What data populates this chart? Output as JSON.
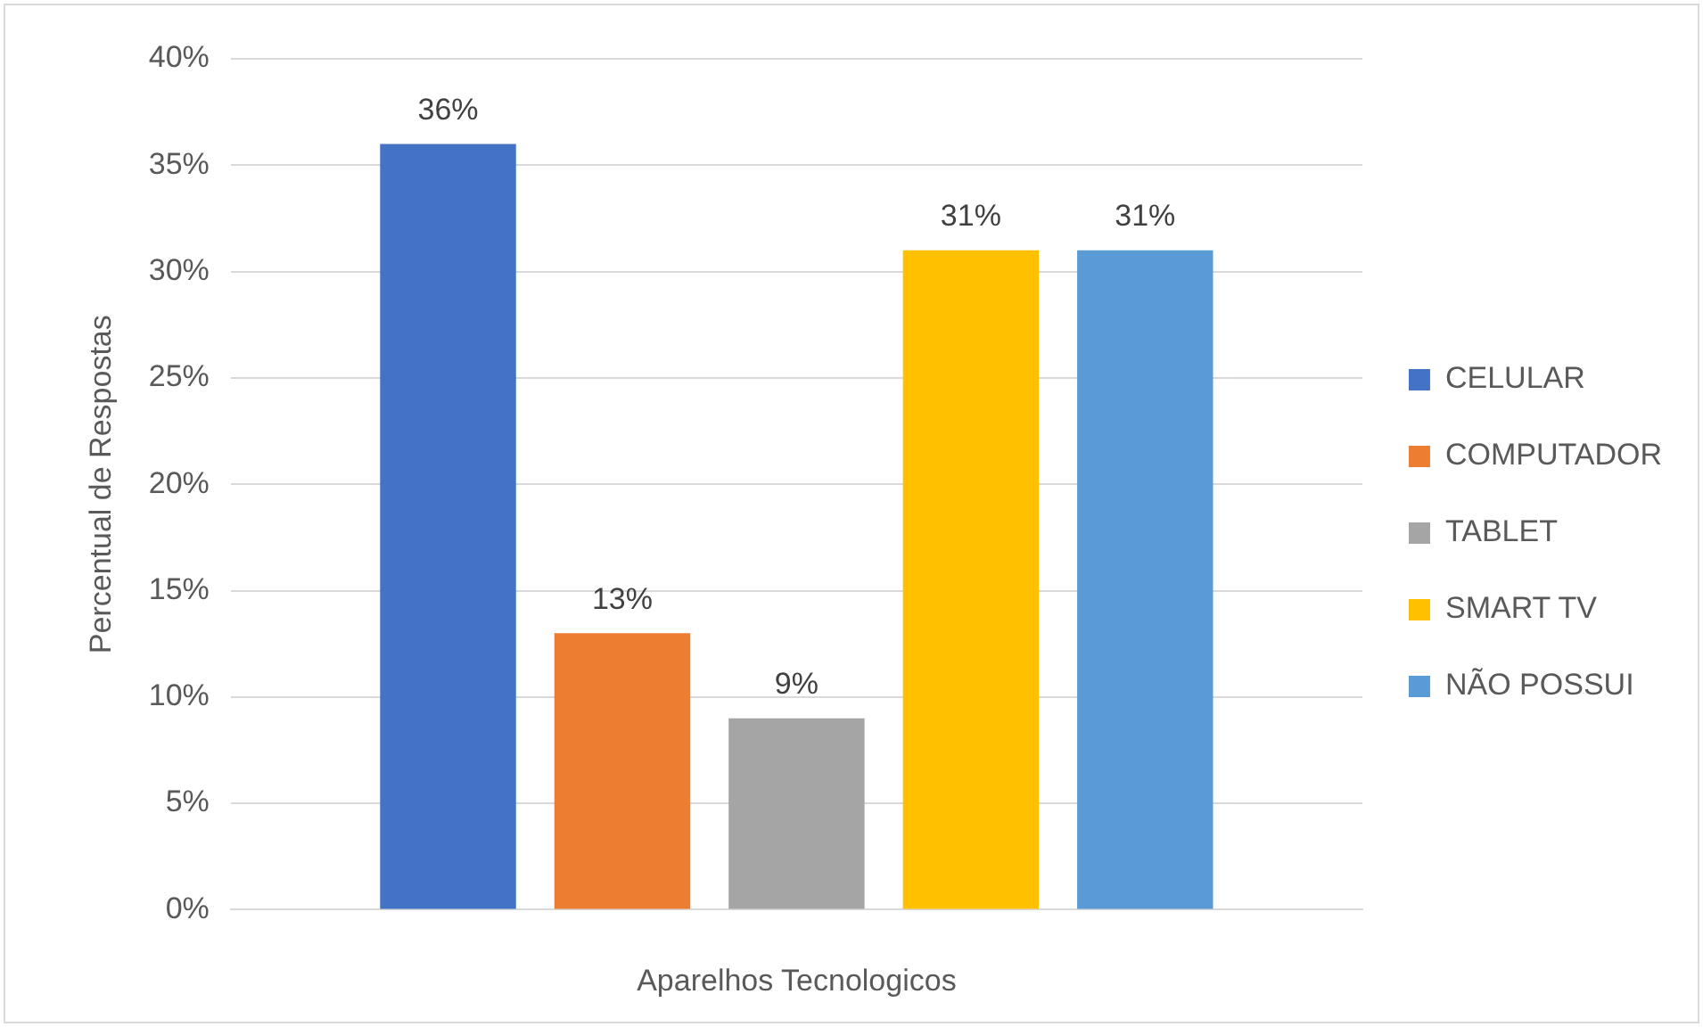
{
  "chart_data": {
    "type": "bar",
    "xlabel": "Aparelhos Tecnologicos",
    "ylabel": "Percentual de Respostas",
    "categories": [
      null
    ],
    "series": [
      {
        "name": "CELULAR",
        "color": "#4472c4",
        "values": [
          36
        ],
        "value_labels": [
          "36%"
        ]
      },
      {
        "name": "COMPUTADOR",
        "color": "#ed7d31",
        "values": [
          13
        ],
        "value_labels": [
          "13%"
        ]
      },
      {
        "name": "TABLET",
        "color": "#a5a5a5",
        "values": [
          9
        ],
        "value_labels": [
          "9%"
        ]
      },
      {
        "name": "SMART TV",
        "color": "#ffc000",
        "values": [
          31
        ],
        "value_labels": [
          "31%"
        ]
      },
      {
        "name": "NÃO POSSUI",
        "color": "#5b9bd5",
        "values": [
          31
        ],
        "value_labels": [
          "31%"
        ]
      }
    ],
    "ylim": [
      0,
      40
    ],
    "yticks": [
      {
        "value": 0,
        "label": "0%"
      },
      {
        "value": 5,
        "label": "5%"
      },
      {
        "value": 10,
        "label": "10%"
      },
      {
        "value": 15,
        "label": "15%"
      },
      {
        "value": 20,
        "label": "20%"
      },
      {
        "value": 25,
        "label": "25%"
      },
      {
        "value": 30,
        "label": "30%"
      },
      {
        "value": 35,
        "label": "35%"
      },
      {
        "value": 40,
        "label": "40%"
      }
    ],
    "grid": "y",
    "legend": "right"
  }
}
